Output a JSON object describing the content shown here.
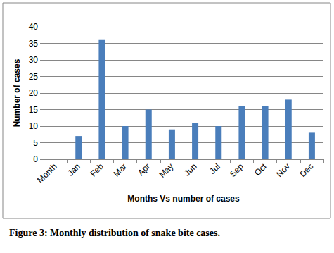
{
  "chart_data": {
    "type": "bar",
    "title": "Figure 3: Monthly distribution of snake bite cases.",
    "x_label": "Months Vs number of cases",
    "y_label": "Number of cases",
    "categories": [
      "Month",
      "Jan",
      "Feb",
      "Mar",
      "Apr",
      "May",
      "Jun",
      "Jul",
      "Sep",
      "Oct",
      "Nov",
      "Dec"
    ],
    "values": [
      null,
      7,
      36,
      10,
      15,
      9,
      11,
      10,
      16,
      16,
      18,
      8
    ],
    "color": "#4a7ebb",
    "ylim": [
      0,
      40
    ],
    "yticks": [
      0,
      5,
      10,
      15,
      20,
      25,
      30,
      35,
      40
    ],
    "grid": true
  }
}
